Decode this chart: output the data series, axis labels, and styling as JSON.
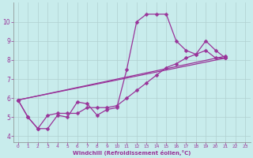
{
  "xlabel": "Windchill (Refroidissement éolien,°C)",
  "bg_color": "#c8ecec",
  "line_color": "#993399",
  "grid_color": "#b0d0d0",
  "xlim": [
    -0.5,
    23.5
  ],
  "ylim": [
    3.7,
    11.0
  ],
  "xticks": [
    0,
    1,
    2,
    3,
    4,
    5,
    6,
    7,
    8,
    9,
    10,
    11,
    12,
    13,
    14,
    15,
    16,
    17,
    18,
    19,
    20,
    21,
    22,
    23
  ],
  "yticks": [
    4,
    5,
    6,
    7,
    8,
    9,
    10
  ],
  "line1_x": [
    0,
    1,
    2,
    3,
    4,
    5,
    6,
    7,
    8,
    9,
    10,
    11,
    12,
    13,
    14,
    15,
    16,
    17,
    18,
    19,
    20,
    21
  ],
  "line1_y": [
    5.9,
    5.0,
    4.4,
    4.4,
    5.1,
    5.0,
    5.8,
    5.7,
    5.1,
    5.4,
    5.5,
    7.5,
    10.0,
    10.4,
    10.4,
    10.4,
    9.0,
    8.5,
    8.3,
    9.0,
    8.5,
    8.1
  ],
  "line2_x": [
    0,
    1,
    2,
    3,
    4,
    5,
    6,
    7,
    8,
    9,
    10,
    11,
    12,
    13,
    14,
    15,
    16,
    17,
    18,
    19,
    20,
    21
  ],
  "line2_y": [
    5.9,
    5.0,
    4.4,
    5.1,
    5.2,
    5.2,
    5.2,
    5.5,
    5.5,
    5.5,
    5.6,
    6.0,
    6.4,
    6.8,
    7.2,
    7.6,
    7.8,
    8.1,
    8.3,
    8.5,
    8.1,
    8.1
  ],
  "line3_x": [
    0,
    21
  ],
  "line3_y": [
    5.9,
    8.1
  ],
  "line4_x": [
    0,
    21
  ],
  "line4_y": [
    5.9,
    8.2
  ],
  "marker_size": 2.5,
  "linewidth": 0.9
}
